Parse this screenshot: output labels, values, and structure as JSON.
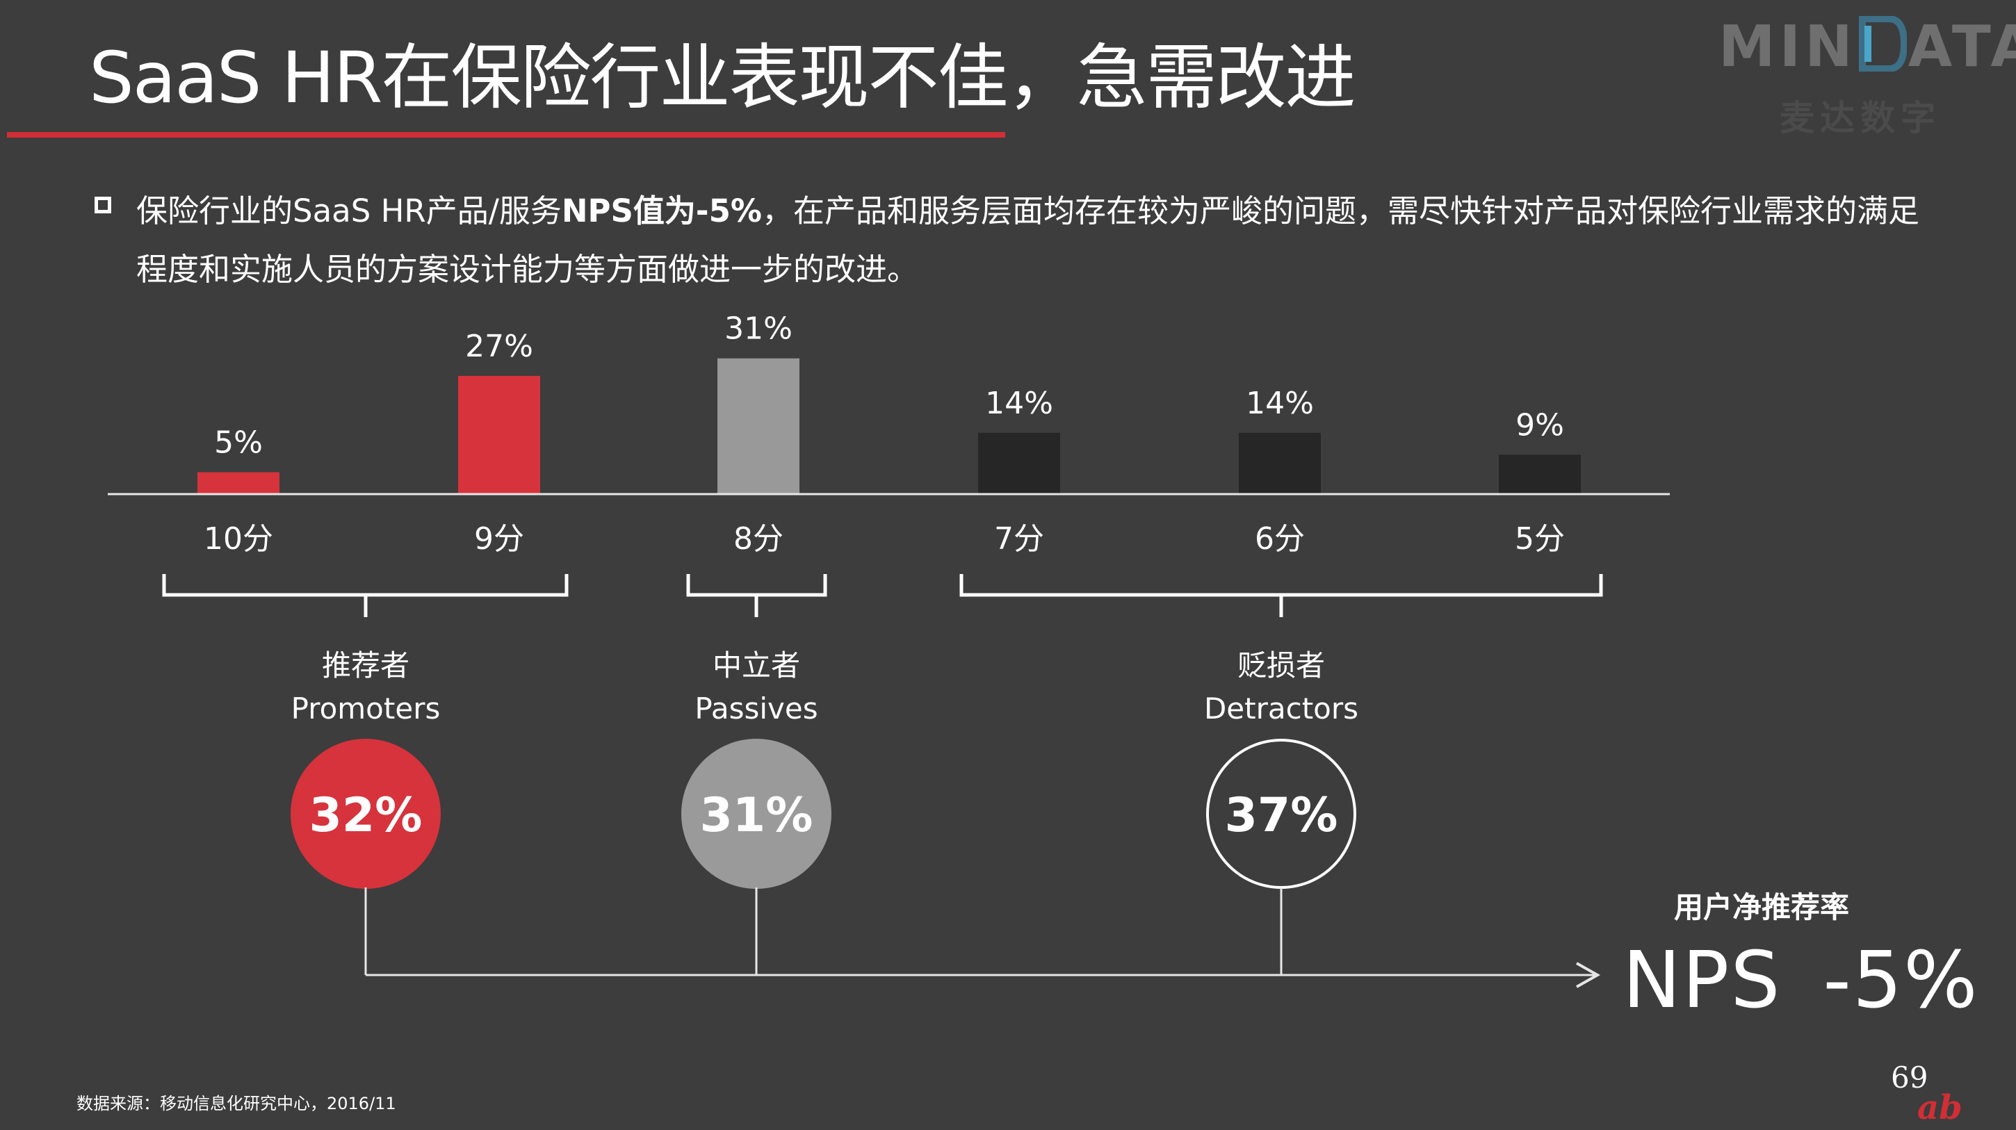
{
  "title": "SaaS HR在保险行业表现不佳，急需改进",
  "logo": {
    "word_left": "MIN",
    "word_right": "ATA",
    "sub": "麦达数字"
  },
  "bullet": {
    "pre": "保险行业的SaaS HR产品/服务",
    "bold": "NPS值为-5%",
    "post": "，在产品和服务层面均存在较为严峻的问题，需尽快针对产品对保险行业需求的满足程度和实施人员的方案设计能力等方面做进一步的改进。"
  },
  "chart_data": {
    "type": "bar",
    "categories": [
      "10分",
      "9分",
      "8分",
      "7分",
      "6分",
      "5分"
    ],
    "values": [
      5,
      27,
      31,
      14,
      14,
      9
    ],
    "data_labels": [
      "5%",
      "27%",
      "31%",
      "14%",
      "14%",
      "9%"
    ],
    "bar_colors": [
      "#d6333c",
      "#d6333c",
      "#999999",
      "#262626",
      "#262626",
      "#262626"
    ],
    "ylim": [
      0,
      31
    ]
  },
  "groups": [
    {
      "label_cn": "推荐者",
      "label_en": "Promoters",
      "percent": "32%",
      "fill": "#d6333c",
      "stroke": "#d6333c",
      "text_color": "#ffffff"
    },
    {
      "label_cn": "中立者",
      "label_en": "Passives",
      "percent": "31%",
      "fill": "#9a9a9a",
      "stroke": "#9a9a9a",
      "text_color": "#ffffff"
    },
    {
      "label_cn": "贬损者",
      "label_en": "Detractors",
      "percent": "37%",
      "fill": "none",
      "stroke": "#ffffff",
      "text_color": "#ffffff"
    }
  ],
  "nps": {
    "label": "用户净推荐率",
    "name": "NPS",
    "value": "-5%"
  },
  "source": "数据来源：移动信息化研究中心，2016/11",
  "page_number": "69"
}
